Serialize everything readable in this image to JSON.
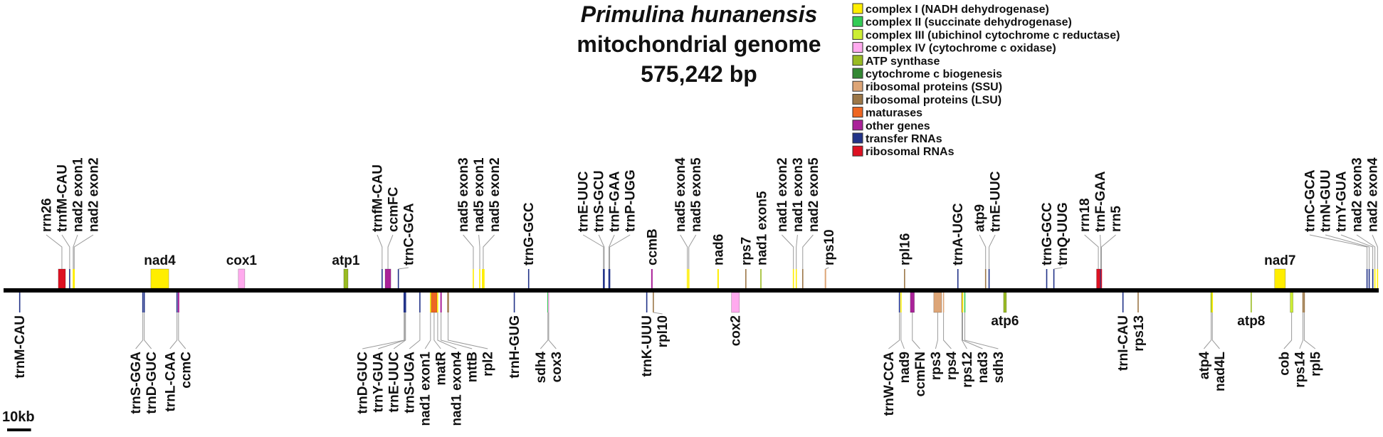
{
  "title": {
    "species": "Primulina hunanensis",
    "subtitle": "mitochondrial genome",
    "size": "575,242 bp"
  },
  "genome": {
    "length_kb": 575.242
  },
  "scale_bar": {
    "label": "10kb",
    "length_kb": 10
  },
  "legend": [
    {
      "key": "I",
      "label": "complex I (NADH dehydrogenase)",
      "color": "#ffee00"
    },
    {
      "key": "II",
      "label": "complex II (succinate dehydrogenase)",
      "color": "#33cc55"
    },
    {
      "key": "III",
      "label": "complex III (ubichinol cytochrome c reductase)",
      "color": "#ccee33"
    },
    {
      "key": "IV",
      "label": "complex IV (cytochrome c oxidase)",
      "color": "#ffaaee"
    },
    {
      "key": "ATP",
      "label": "ATP synthase",
      "color": "#99bb22"
    },
    {
      "key": "CCM",
      "label": "cytochrome c biogenesis",
      "color": "#338833"
    },
    {
      "key": "SSU",
      "label": "ribosomal proteins (SSU)",
      "color": "#dda577"
    },
    {
      "key": "LSU",
      "label": "ribosomal proteins (LSU)",
      "color": "#9c7748"
    },
    {
      "key": "MAT",
      "label": "maturases",
      "color": "#ee6622"
    },
    {
      "key": "OTHER",
      "label": "other genes",
      "color": "#aa2299"
    },
    {
      "key": "TRNA",
      "label": "transfer RNAs",
      "color": "#223388"
    },
    {
      "key": "RRNA",
      "label": "ribosomal RNAs",
      "color": "#dd1122"
    }
  ],
  "clusters": [
    {
      "strand": "+",
      "genes": [
        {
          "name": "rrn26",
          "start": 22.9,
          "end": 25.9,
          "cat": "RRNA"
        },
        {
          "name": "trnfM-CAU",
          "start": 27.6,
          "end": 27.7,
          "cat": "TRNA"
        },
        {
          "name": "nad2 exon1",
          "start": 29.1,
          "end": 29.2,
          "cat": "I"
        },
        {
          "name": "nad2 exon2",
          "start": 29.4,
          "end": 29.7,
          "cat": "I"
        }
      ]
    },
    {
      "strand": "+",
      "genes": [
        {
          "name": "nad4",
          "start": 61.6,
          "end": 69.1,
          "cat": "I"
        }
      ]
    },
    {
      "strand": "+",
      "genes": [
        {
          "name": "cox1",
          "start": 98.2,
          "end": 100.9,
          "cat": "IV"
        }
      ]
    },
    {
      "strand": "+",
      "genes": [
        {
          "name": "atp1",
          "start": 142.3,
          "end": 144.1,
          "cat": "ATP"
        }
      ]
    },
    {
      "strand": "+",
      "genes": [
        {
          "name": "trnfM-CAU",
          "start": 158.3,
          "end": 158.4,
          "cat": "TRNA"
        },
        {
          "name": "ccmFC",
          "start": 159.6,
          "end": 162.0,
          "cat": "OTHER"
        }
      ]
    },
    {
      "strand": "+",
      "genes": [
        {
          "name": "trnC-GCA",
          "start": 165.1,
          "end": 165.2,
          "cat": "TRNA"
        }
      ]
    },
    {
      "strand": "+",
      "genes": [
        {
          "name": "nad5 exon3",
          "start": 196.4,
          "end": 196.6,
          "cat": "I"
        },
        {
          "name": "nad5 exon1",
          "start": 199.1,
          "end": 199.3,
          "cat": "I"
        },
        {
          "name": "nad5 exon2",
          "start": 200.1,
          "end": 201.2,
          "cat": "I"
        }
      ]
    },
    {
      "strand": "+",
      "genes": [
        {
          "name": "trnG-GCC",
          "start": 219.6,
          "end": 219.7,
          "cat": "TRNA"
        }
      ]
    },
    {
      "strand": "+",
      "genes": [
        {
          "name": "trnE-UUC",
          "start": 250.9,
          "end": 251.0,
          "cat": "TRNA"
        },
        {
          "name": "trnS-GCU",
          "start": 251.2,
          "end": 251.3,
          "cat": "TRNA"
        },
        {
          "name": "trnF-GAA",
          "start": 253.2,
          "end": 253.3,
          "cat": "TRNA"
        },
        {
          "name": "trnP-UGG",
          "start": 253.5,
          "end": 253.6,
          "cat": "TRNA"
        }
      ]
    },
    {
      "strand": "+",
      "genes": [
        {
          "name": "ccmB",
          "start": 270.9,
          "end": 271.5,
          "cat": "OTHER"
        }
      ]
    },
    {
      "strand": "+",
      "genes": [
        {
          "name": "nad5 exon4",
          "start": 285.9,
          "end": 286.2,
          "cat": "I"
        },
        {
          "name": "nad5 exon5",
          "start": 286.5,
          "end": 286.8,
          "cat": "I"
        }
      ]
    },
    {
      "strand": "+",
      "genes": [
        {
          "name": "nad6",
          "start": 298.6,
          "end": 299.2,
          "cat": "I"
        }
      ]
    },
    {
      "strand": "+",
      "genes": [
        {
          "name": "rps7",
          "start": 310.3,
          "end": 310.7,
          "cat": "LSU"
        }
      ]
    },
    {
      "strand": "+",
      "genes": [
        {
          "name": "nad1 exon5",
          "start": 316.7,
          "end": 316.9,
          "cat": "ATP"
        }
      ]
    },
    {
      "strand": "+",
      "genes": [
        {
          "name": "nad1 exon2",
          "start": 330.3,
          "end": 330.5,
          "cat": "I"
        },
        {
          "name": "nad1 exon3",
          "start": 331.5,
          "end": 331.7,
          "cat": "I"
        },
        {
          "name": "nad2 exon5",
          "start": 334.2,
          "end": 334.4,
          "cat": "LSU"
        }
      ]
    },
    {
      "strand": "+",
      "genes": [
        {
          "name": "rps10",
          "start": 343.5,
          "end": 344.1,
          "cat": "SSU"
        }
      ]
    },
    {
      "strand": "+",
      "genes": [
        {
          "name": "rpl16",
          "start": 376.7,
          "end": 377.1,
          "cat": "LSU"
        }
      ]
    },
    {
      "strand": "+",
      "genes": [
        {
          "name": "trnA-UGC",
          "start": 399.0,
          "end": 399.4,
          "cat": "TRNA"
        }
      ]
    },
    {
      "strand": "+",
      "genes": [
        {
          "name": "atp9",
          "start": 410.7,
          "end": 410.9,
          "cat": "LSU"
        },
        {
          "name": "trnE-UUC",
          "start": 412.2,
          "end": 412.3,
          "cat": "TRNA"
        }
      ]
    },
    {
      "strand": "+",
      "genes": [
        {
          "name": "trnG-GCC",
          "start": 436.3,
          "end": 436.4,
          "cat": "TRNA"
        },
        {
          "name": "trnQ-UUG",
          "start": 439.3,
          "end": 439.4,
          "cat": "TRNA"
        }
      ]
    },
    {
      "strand": "+",
      "genes": [
        {
          "name": "rrn18",
          "start": 457.2,
          "end": 458.7,
          "cat": "RRNA"
        },
        {
          "name": "trnF-GAA",
          "start": 458.9,
          "end": 459.0,
          "cat": "TRNA"
        },
        {
          "name": "rrn5",
          "start": 459.2,
          "end": 459.3,
          "cat": "RRNA"
        }
      ]
    },
    {
      "strand": "+",
      "genes": [
        {
          "name": "nad7",
          "start": 531.7,
          "end": 536.2,
          "cat": "I"
        }
      ]
    },
    {
      "strand": "+",
      "genes": [
        {
          "name": "trnC-GCA",
          "start": 570.3,
          "end": 570.4,
          "cat": "TRNA"
        },
        {
          "name": "trnN-GUU",
          "start": 571.2,
          "end": 571.3,
          "cat": "TRNA"
        },
        {
          "name": "trnY-GUA",
          "start": 572.7,
          "end": 572.8,
          "cat": "TRNA"
        },
        {
          "name": "nad2 exon3",
          "start": 573.6,
          "end": 573.7,
          "cat": "I"
        },
        {
          "name": "nad2 exon4",
          "start": 574.6,
          "end": 574.9,
          "cat": "I"
        }
      ]
    },
    {
      "strand": "-",
      "genes": [
        {
          "name": "trnM-CAU",
          "start": 6.7,
          "end": 6.8,
          "cat": "TRNA"
        }
      ]
    },
    {
      "strand": "-",
      "genes": [
        {
          "name": "trnS-GGA",
          "start": 58.2,
          "end": 58.3,
          "cat": "TRNA"
        },
        {
          "name": "trnD-GUC",
          "start": 58.8,
          "end": 58.9,
          "cat": "TRNA"
        }
      ]
    },
    {
      "strand": "-",
      "genes": [
        {
          "name": "trnL-CAA",
          "start": 72.5,
          "end": 72.6,
          "cat": "TRNA"
        },
        {
          "name": "ccmC",
          "start": 72.9,
          "end": 73.5,
          "cat": "OTHER"
        }
      ]
    },
    {
      "strand": "-",
      "genes": [
        {
          "name": "trnD-GUC",
          "start": 167.5,
          "end": 167.6,
          "cat": "TRNA"
        },
        {
          "name": "trnY-GUA",
          "start": 167.8,
          "end": 167.9,
          "cat": "TRNA"
        },
        {
          "name": "trnE-UUC",
          "start": 168.1,
          "end": 168.2,
          "cat": "TRNA"
        },
        {
          "name": "trnS-UGA",
          "start": 174.1,
          "end": 174.2,
          "cat": "TRNA"
        },
        {
          "name": "nad1 exon1",
          "start": 178.5,
          "end": 178.7,
          "cat": "I"
        },
        {
          "name": "matR",
          "start": 178.9,
          "end": 181.3,
          "cat": "MAT"
        },
        {
          "name": "nad1 exon4",
          "start": 181.5,
          "end": 181.7,
          "cat": "I"
        },
        {
          "name": "mttB",
          "start": 182.7,
          "end": 183.3,
          "cat": "OTHER"
        },
        {
          "name": "rpl2",
          "start": 185.6,
          "end": 186.3,
          "cat": "LSU"
        }
      ]
    },
    {
      "strand": "-",
      "genes": [
        {
          "name": "trnH-GUG",
          "start": 213.6,
          "end": 213.7,
          "cat": "TRNA"
        }
      ]
    },
    {
      "strand": "-",
      "genes": [
        {
          "name": "sdh4",
          "start": 227.6,
          "end": 227.8,
          "cat": "II"
        },
        {
          "name": "cox3",
          "start": 227.9,
          "end": 228.2,
          "cat": "IV"
        }
      ]
    },
    {
      "strand": "-",
      "genes": [
        {
          "name": "trnK-UUU",
          "start": 269.0,
          "end": 269.1,
          "cat": "TRNA"
        },
        {
          "name": "rpl10",
          "start": 271.6,
          "end": 272.0,
          "cat": "LSU"
        }
      ]
    },
    {
      "strand": "-",
      "genes": [
        {
          "name": "cox2",
          "start": 304.5,
          "end": 307.8,
          "cat": "IV"
        }
      ]
    },
    {
      "strand": "-",
      "genes": [
        {
          "name": "trnW-CCA",
          "start": 374.7,
          "end": 374.8,
          "cat": "TRNA"
        },
        {
          "name": "nad9",
          "start": 375.2,
          "end": 375.6,
          "cat": "I"
        },
        {
          "name": "ccmFN",
          "start": 379.3,
          "end": 381.0,
          "cat": "OTHER"
        }
      ]
    },
    {
      "strand": "-",
      "genes": [
        {
          "name": "rps3",
          "start": 389.1,
          "end": 392.4,
          "cat": "SSU"
        },
        {
          "name": "rps4",
          "start": 393.1,
          "end": 393.3,
          "cat": "SSU"
        },
        {
          "name": "rps12",
          "start": 400.8,
          "end": 401.0,
          "cat": "LSU"
        },
        {
          "name": "nad3",
          "start": 401.1,
          "end": 401.3,
          "cat": "I"
        },
        {
          "name": "sdh3",
          "start": 401.9,
          "end": 402.3,
          "cat": "II"
        }
      ]
    },
    {
      "strand": "-",
      "genes": [
        {
          "name": "atp6",
          "start": 418.3,
          "end": 419.5,
          "cat": "ATP"
        }
      ]
    },
    {
      "strand": "-",
      "genes": [
        {
          "name": "trnI-CAU",
          "start": 468.2,
          "end": 468.3,
          "cat": "TRNA"
        },
        {
          "name": "rps13",
          "start": 474.4,
          "end": 474.8,
          "cat": "LSU"
        }
      ]
    },
    {
      "strand": "-",
      "genes": [
        {
          "name": "atp4",
          "start": 504.9,
          "end": 505.4,
          "cat": "ATP"
        },
        {
          "name": "nad4L",
          "start": 505.5,
          "end": 505.8,
          "cat": "I"
        }
      ]
    },
    {
      "strand": "-",
      "genes": [
        {
          "name": "atp8",
          "start": 521.7,
          "end": 522.1,
          "cat": "ATP"
        }
      ]
    },
    {
      "strand": "-",
      "genes": [
        {
          "name": "cob",
          "start": 538.2,
          "end": 539.4,
          "cat": "III"
        },
        {
          "name": "rps14",
          "start": 543.4,
          "end": 543.7,
          "cat": "LSU"
        },
        {
          "name": "rpl5",
          "start": 543.9,
          "end": 544.3,
          "cat": "LSU"
        }
      ]
    }
  ]
}
